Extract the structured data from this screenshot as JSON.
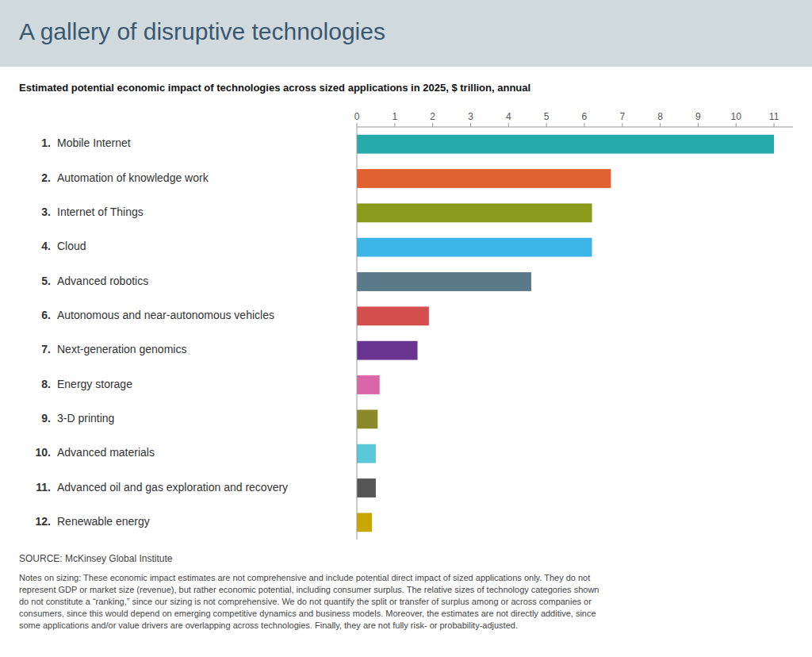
{
  "chart_data": {
    "type": "bar",
    "orientation": "horizontal",
    "title": "A gallery of disruptive technologies",
    "subtitle": "Estimated potential economic impact of technologies across sized applications in 2025, $ trillion, annual",
    "categories": [
      "Mobile Internet",
      "Automation of knowledge work",
      "Internet of Things",
      "Cloud",
      "Advanced robotics",
      "Autonomous and near-autonomous vehicles",
      "Next-generation genomics",
      "Energy storage",
      "3-D printing",
      "Advanced materials",
      "Advanced oil and gas exploration and recovery",
      "Renewable energy"
    ],
    "rank_labels": [
      "1.",
      "2.",
      "3.",
      "4.",
      "5.",
      "6.",
      "7.",
      "8.",
      "9.",
      "10.",
      "11.",
      "12."
    ],
    "values": [
      11.0,
      6.7,
      6.2,
      6.2,
      4.6,
      1.9,
      1.6,
      0.6,
      0.55,
      0.5,
      0.5,
      0.4
    ],
    "colors": [
      "#26a9a9",
      "#e06030",
      "#8a9a1a",
      "#3ab5e5",
      "#5a7a8a",
      "#d44e4e",
      "#6a3590",
      "#d966a8",
      "#8a8a2a",
      "#5bc8d8",
      "#555555",
      "#c8a800"
    ],
    "xlim": [
      0,
      11.5
    ],
    "xticks": [
      0,
      1,
      2,
      3,
      4,
      5,
      6,
      7,
      8,
      9,
      10,
      11
    ],
    "grid": false,
    "source": "SOURCE: McKinsey Global Institute",
    "notes": "Notes on sizing: These economic impact estimates are not comprehensive and include potential direct impact of sized applications only. They do not\nrepresent GDP or market size (revenue), but rather economic potential, including consumer surplus. The relative sizes of technology categories shown\ndo not constitute a “ranking,” since our sizing is not comprehensive. We do not quantify the split or transfer of surplus among or across companies or\nconsumers, since this would depend on emerging competitive dynamics and business models. Moreover, the estimates are not directly additive, since\nsome applications and/or value drivers are overlapping across technologies. Finally, they are not fully risk- or probability-adjusted."
  }
}
